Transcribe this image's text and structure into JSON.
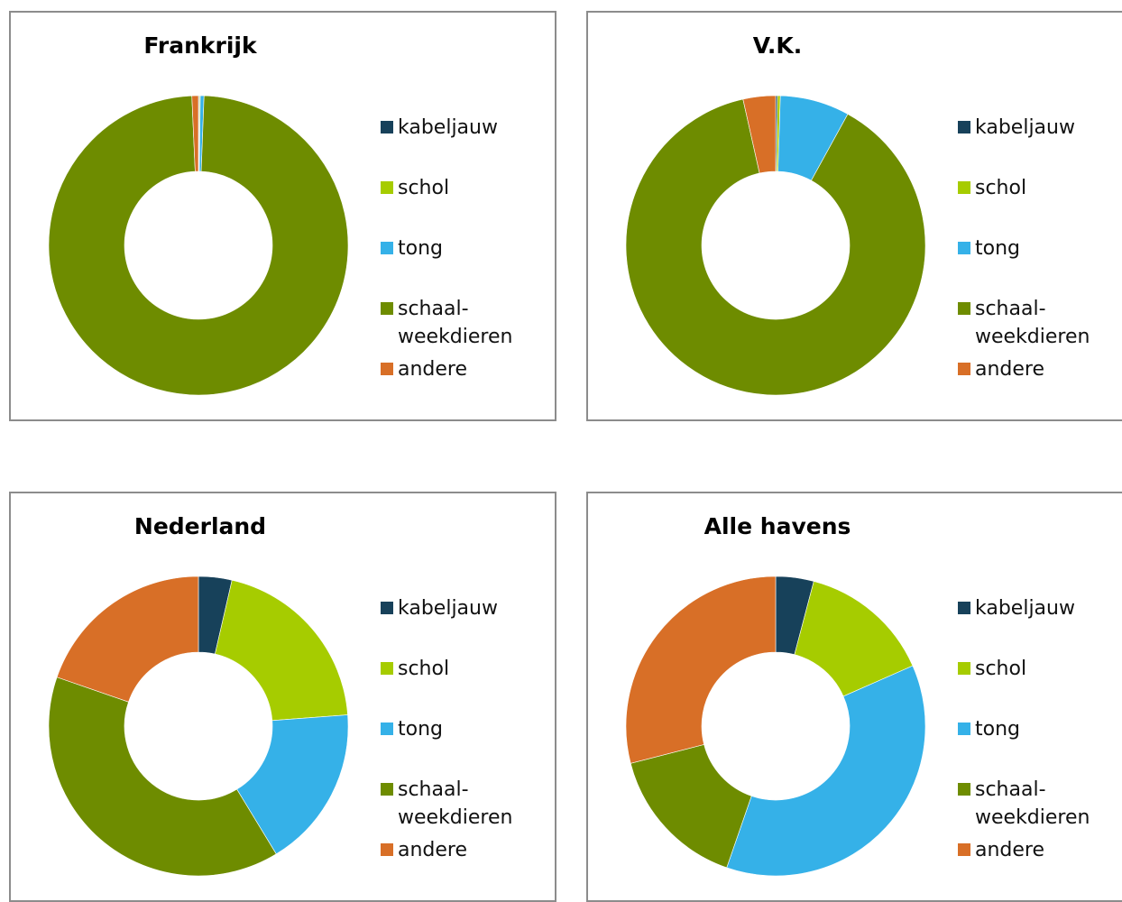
{
  "chart_data": [
    {
      "type": "pie",
      "title": "Frankrijk",
      "categories": [
        "kabeljauw",
        "schol",
        "tong",
        "schaal-weekdieren",
        "andere"
      ],
      "values": [
        0.1,
        0.1,
        0.4,
        98.7,
        0.7
      ],
      "colors": [
        "#17415a",
        "#a6cc00",
        "#35b1e8",
        "#6e8c00",
        "#d86f27"
      ]
    },
    {
      "type": "pie",
      "title": "V.K.",
      "categories": [
        "kabeljauw",
        "schol",
        "tong",
        "schaal-weekdieren",
        "andere"
      ],
      "values": [
        0.2,
        0.3,
        7.5,
        88.5,
        3.5
      ],
      "colors": [
        "#17415a",
        "#a6cc00",
        "#35b1e8",
        "#6e8c00",
        "#d86f27"
      ]
    },
    {
      "type": "pie",
      "title": "Nederland",
      "categories": [
        "kabeljauw",
        "schol",
        "tong",
        "schaal-weekdieren",
        "andere"
      ],
      "values": [
        3.6,
        20.2,
        17.5,
        39,
        19.7
      ],
      "colors": [
        "#17415a",
        "#a6cc00",
        "#35b1e8",
        "#6e8c00",
        "#d86f27"
      ]
    },
    {
      "type": "pie",
      "title": "Alle havens",
      "categories": [
        "kabeljauw",
        "schol",
        "tong",
        "schaal-weekdieren",
        "andere"
      ],
      "values": [
        4.1,
        14.3,
        36.9,
        15.7,
        29
      ],
      "colors": [
        "#17415a",
        "#a6cc00",
        "#35b1e8",
        "#6e8c00",
        "#d86f27"
      ]
    }
  ]
}
